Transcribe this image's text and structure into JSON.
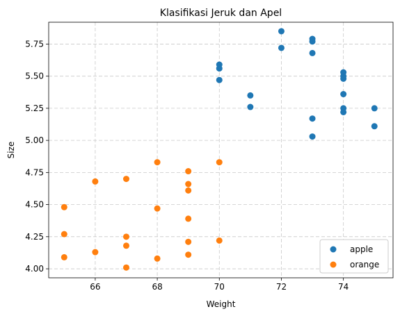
{
  "chart_data": {
    "type": "scatter",
    "title": "Klasifikasi Jeruk dan Apel",
    "xlabel": "Weight",
    "ylabel": "Size",
    "xlim": [
      64.5,
      75.6
    ],
    "ylim": [
      3.93,
      5.92
    ],
    "xticks": [
      66,
      68,
      70,
      72,
      74
    ],
    "xtick_labels": [
      "66",
      "68",
      "70",
      "72",
      "74"
    ],
    "yticks": [
      4.0,
      4.25,
      4.5,
      4.75,
      5.0,
      5.25,
      5.5,
      5.75
    ],
    "ytick_labels": [
      "4.00",
      "4.25",
      "4.50",
      "4.75",
      "5.00",
      "5.25",
      "5.50",
      "5.75"
    ],
    "grid": true,
    "legend_position": "lower-right",
    "series": [
      {
        "name": "apple",
        "color": "#1f77b4",
        "points": [
          {
            "x": 70,
            "y": 5.59
          },
          {
            "x": 70,
            "y": 5.56
          },
          {
            "x": 70,
            "y": 5.47
          },
          {
            "x": 71,
            "y": 5.35
          },
          {
            "x": 71,
            "y": 5.26
          },
          {
            "x": 72,
            "y": 5.85
          },
          {
            "x": 72,
            "y": 5.72
          },
          {
            "x": 73,
            "y": 5.79
          },
          {
            "x": 73,
            "y": 5.77
          },
          {
            "x": 73,
            "y": 5.68
          },
          {
            "x": 73,
            "y": 5.17
          },
          {
            "x": 73,
            "y": 5.03
          },
          {
            "x": 74,
            "y": 5.53
          },
          {
            "x": 74,
            "y": 5.5
          },
          {
            "x": 74,
            "y": 5.48
          },
          {
            "x": 74,
            "y": 5.36
          },
          {
            "x": 74,
            "y": 5.25
          },
          {
            "x": 74,
            "y": 5.22
          },
          {
            "x": 75,
            "y": 5.25
          },
          {
            "x": 75,
            "y": 5.11
          }
        ]
      },
      {
        "name": "orange",
        "color": "#ff7f0e",
        "points": [
          {
            "x": 65,
            "y": 4.48
          },
          {
            "x": 65,
            "y": 4.27
          },
          {
            "x": 65,
            "y": 4.09
          },
          {
            "x": 66,
            "y": 4.68
          },
          {
            "x": 66,
            "y": 4.13
          },
          {
            "x": 67,
            "y": 4.7
          },
          {
            "x": 67,
            "y": 4.25
          },
          {
            "x": 67,
            "y": 4.18
          },
          {
            "x": 67,
            "y": 4.01
          },
          {
            "x": 68,
            "y": 4.83
          },
          {
            "x": 68,
            "y": 4.47
          },
          {
            "x": 68,
            "y": 4.08
          },
          {
            "x": 69,
            "y": 4.76
          },
          {
            "x": 69,
            "y": 4.66
          },
          {
            "x": 69,
            "y": 4.61
          },
          {
            "x": 69,
            "y": 4.39
          },
          {
            "x": 69,
            "y": 4.21
          },
          {
            "x": 69,
            "y": 4.11
          },
          {
            "x": 70,
            "y": 4.83
          },
          {
            "x": 70,
            "y": 4.22
          }
        ]
      }
    ]
  }
}
